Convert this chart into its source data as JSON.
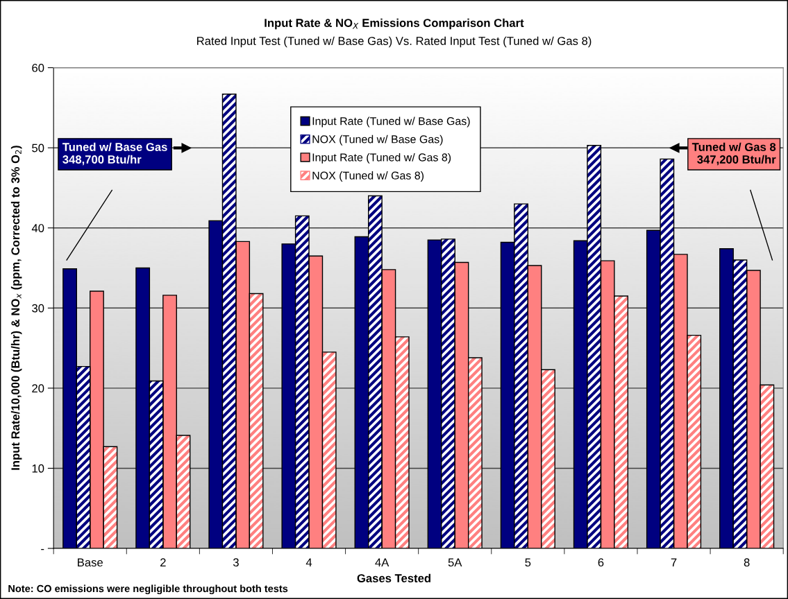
{
  "chart_data": {
    "type": "bar",
    "title": "Input Rate & NO$_{X}$ Emissions Comparison Chart",
    "subtitle": "Rated Input Test (Tuned w/ Base Gas) Vs. Rated Input Test (Tuned w/ Gas 8)",
    "xlabel": "Gases Tested",
    "ylabel": "Input Rate/10,000 (Btu/hr) & NO$_{x}$ (ppm, Corrected to 3% O$_{2}$)",
    "categories": [
      "Base",
      "2",
      "3",
      "4",
      "4A",
      "5A",
      "5",
      "6",
      "7",
      "8"
    ],
    "series": [
      {
        "name": "Input Rate (Tuned w/ Base Gas)",
        "color": "#000080",
        "values": [
          34.9,
          35.0,
          40.9,
          38.0,
          38.9,
          38.5,
          38.2,
          38.4,
          39.7,
          37.4
        ]
      },
      {
        "name": "NOX (Tuned w/ Base Gas)",
        "color": "#000080",
        "values": [
          22.7,
          20.9,
          56.7,
          41.5,
          44.0,
          38.6,
          43.0,
          50.3,
          48.6,
          36.0
        ]
      },
      {
        "name": "Input Rate (Tuned w/ Gas 8)",
        "color": "#ff8080",
        "values": [
          32.1,
          31.6,
          38.3,
          36.5,
          34.8,
          35.7,
          35.3,
          35.9,
          36.7,
          34.7
        ]
      },
      {
        "name": "NOX (Tuned w/ Gas 8)",
        "color": "#ff8080",
        "values": [
          12.7,
          14.1,
          31.8,
          24.5,
          26.4,
          23.8,
          22.3,
          31.5,
          26.6,
          20.4
        ]
      }
    ],
    "ylim": [
      0,
      60
    ],
    "yticks": [
      {
        "value": 0,
        "label": "-"
      },
      10,
      20,
      30,
      40,
      50,
      60
    ],
    "grid": "y",
    "legend": "top center",
    "annotations": [
      "Tuned w/ Base Gas\n348,700 Btu/hr",
      "Tuned w/ Gas 8\n347,200 Btu/hr",
      "Note: CO emissions were negligible throughout both tests"
    ]
  }
}
